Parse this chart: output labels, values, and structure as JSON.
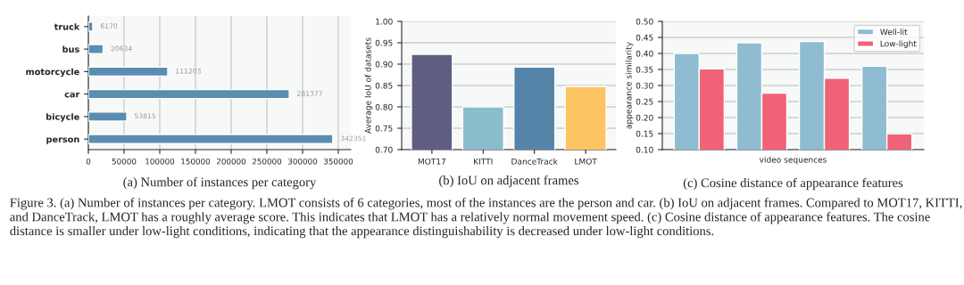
{
  "chart_data": [
    {
      "type": "bar",
      "orientation": "horizontal",
      "title": "(a) Number of instances per category",
      "categories": [
        "truck",
        "bus",
        "motorcycle",
        "car",
        "bicycle",
        "person"
      ],
      "values": [
        6170,
        20634,
        111203,
        281377,
        53815,
        342351
      ],
      "color": "#5b8db0",
      "data_labels": true,
      "xlim": [
        0,
        367500
      ],
      "xticks": [
        0,
        50000,
        100000,
        150000,
        200000,
        250000,
        300000,
        350000
      ],
      "grid": "x",
      "annotations": [
        "Figure 3. (a) Number of instances per category. LMOT consists of 6 categories, most of the instances are the person and car. (b) IoU on adjacent frames. Compared to MOT17, KITTI, and DanceTrack, LMOT has a roughly average score. This indicates that LMOT has a relatively normal movement speed. (c) Cosine distance of appearance features. The cosine distance is smaller under low-light conditions, indicating that the appearance distinguishability is decreased under low-light conditions."
      ]
    },
    {
      "type": "bar",
      "title": "(b) IoU on adjacent frames",
      "ylabel": "Average IoU of datasets",
      "categories": [
        "MOT17",
        "KITTI",
        "DanceTrack",
        "LMOT"
      ],
      "values": [
        0.923,
        0.8,
        0.893,
        0.848
      ],
      "colors": [
        "#5f5e82",
        "#8bbccc",
        "#5684a8",
        "#fcc462"
      ],
      "ylim": [
        0.7,
        1.0
      ],
      "yticks": [
        {
          "value": 0.7,
          "label": "0.70"
        },
        0.75,
        {
          "value": 0.8,
          "label": "0.80"
        },
        0.85,
        {
          "value": 0.9,
          "label": "0.90"
        },
        0.95,
        {
          "value": 1.0,
          "label": "1.00"
        }
      ],
      "grid": "y"
    },
    {
      "type": "bar",
      "title": "(c) Cosine distance of appearance features",
      "xlabel": "video sequences",
      "ylabel": "appearance similarity",
      "categories": [
        null,
        null,
        null,
        null
      ],
      "series": [
        {
          "name": "Well-lit",
          "color": "#8fbcd0",
          "values": [
            0.4,
            0.433,
            0.437,
            0.36
          ]
        },
        {
          "name": "Low-light",
          "color": "#f06277",
          "values": [
            0.352,
            0.276,
            0.323,
            0.149
          ]
        }
      ],
      "ylim": [
        0.1,
        0.5
      ],
      "yticks": [
        {
          "value": 0.1,
          "label": "0.10"
        },
        0.15,
        {
          "value": 0.2,
          "label": "0.20"
        },
        0.25,
        {
          "value": 0.3,
          "label": "0.30"
        },
        0.35,
        {
          "value": 0.4,
          "label": "0.40"
        },
        0.45,
        {
          "value": 0.5,
          "label": "0.50"
        }
      ],
      "grid": "y",
      "legend": "top right"
    }
  ]
}
